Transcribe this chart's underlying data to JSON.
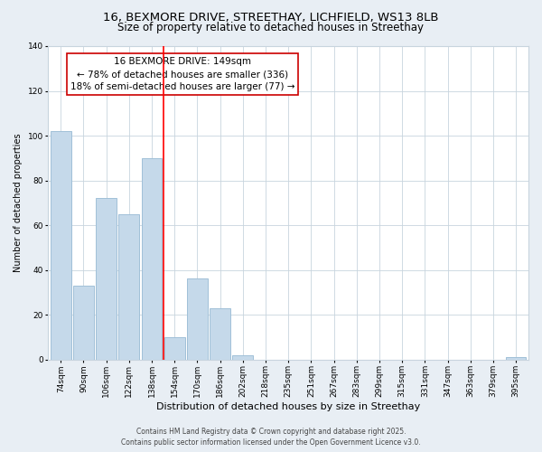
{
  "title": "16, BEXMORE DRIVE, STREETHAY, LICHFIELD, WS13 8LB",
  "subtitle": "Size of property relative to detached houses in Streethay",
  "xlabel": "Distribution of detached houses by size in Streethay",
  "ylabel": "Number of detached properties",
  "categories": [
    "74sqm",
    "90sqm",
    "106sqm",
    "122sqm",
    "138sqm",
    "154sqm",
    "170sqm",
    "186sqm",
    "202sqm",
    "218sqm",
    "235sqm",
    "251sqm",
    "267sqm",
    "283sqm",
    "299sqm",
    "315sqm",
    "331sqm",
    "347sqm",
    "363sqm",
    "379sqm",
    "395sqm"
  ],
  "values": [
    102,
    33,
    72,
    65,
    90,
    10,
    36,
    23,
    2,
    0,
    0,
    0,
    0,
    0,
    0,
    0,
    0,
    0,
    0,
    0,
    1
  ],
  "bar_color": "#c5d9ea",
  "bar_edge_color": "#a0c0d8",
  "vline_x": 4.5,
  "vline_color": "red",
  "ylim": [
    0,
    140
  ],
  "yticks": [
    0,
    20,
    40,
    60,
    80,
    100,
    120,
    140
  ],
  "annotation_title": "16 BEXMORE DRIVE: 149sqm",
  "annotation_line1": "← 78% of detached houses are smaller (336)",
  "annotation_line2": "18% of semi-detached houses are larger (77) →",
  "footer1": "Contains HM Land Registry data © Crown copyright and database right 2025.",
  "footer2": "Contains public sector information licensed under the Open Government Licence v3.0.",
  "background_color": "#e8eef4",
  "plot_background": "#ffffff",
  "grid_color": "#c8d4de",
  "title_fontsize": 9.5,
  "subtitle_fontsize": 8.5,
  "xlabel_fontsize": 8,
  "ylabel_fontsize": 7,
  "tick_fontsize": 6.5,
  "annotation_fontsize": 7.5,
  "footer_fontsize": 5.5
}
